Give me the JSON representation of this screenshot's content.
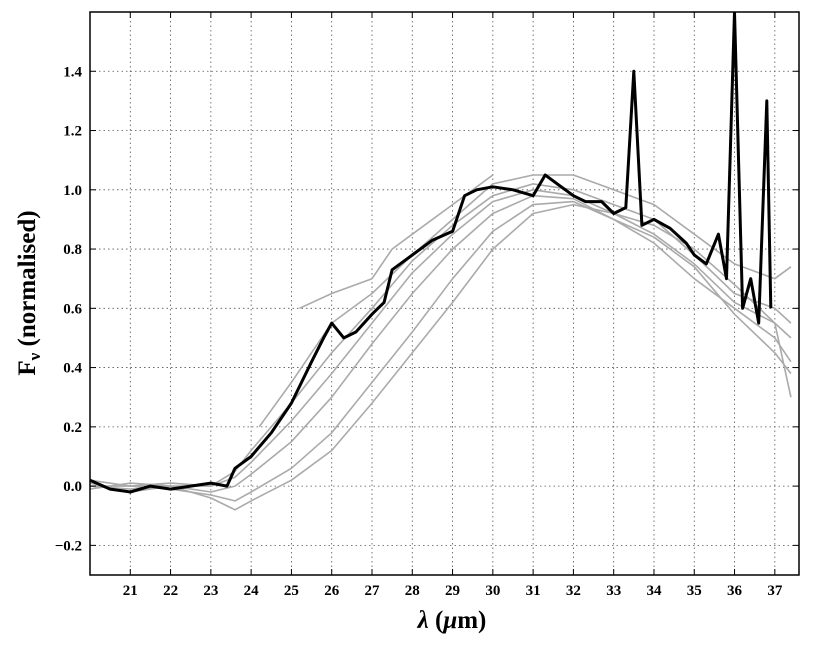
{
  "chart_data": {
    "type": "line",
    "title": "",
    "xlabel": {
      "symbol": "λ",
      "rest": " (",
      "unit_mu": "μ",
      "unit_m": "m)"
    },
    "ylabel": {
      "main": "F",
      "sub": "ν",
      "rest": " (normalised)"
    },
    "xlim": [
      20.0,
      37.6
    ],
    "ylim": [
      -0.3,
      1.6
    ],
    "grid": true,
    "x_ticks": [
      21,
      22,
      23,
      24,
      25,
      26,
      27,
      28,
      29,
      30,
      31,
      32,
      33,
      34,
      35,
      36,
      37
    ],
    "x_tick_labels": [
      "21",
      "22",
      "23",
      "24",
      "25",
      "26",
      "27",
      "28",
      "29",
      "30",
      "31",
      "32",
      "33",
      "34",
      "35",
      "36",
      "37"
    ],
    "y_ticks": [
      -0.2,
      0.0,
      0.2,
      0.4,
      0.6,
      0.8,
      1.0,
      1.2,
      1.4
    ],
    "y_tick_labels": [
      "−0.2",
      "0.0",
      "0.2",
      "0.4",
      "0.6",
      "0.8",
      "1.0",
      "1.2",
      "1.4"
    ],
    "colors": {
      "individual": "#aaaaaa",
      "mean": "#000000",
      "grid": "#555555"
    },
    "series": [
      {
        "style": "individual",
        "x": [
          20.0,
          21.0,
          22.0,
          23.0,
          23.6,
          24.0,
          25.0,
          26.0,
          27.0,
          28.0,
          29.0,
          30.0,
          31.0,
          32.0,
          33.0,
          34.0,
          35.0,
          36.0,
          37.0,
          37.4
        ],
        "y": [
          0.0,
          -0.01,
          0.0,
          0.0,
          0.05,
          0.12,
          0.28,
          0.45,
          0.6,
          0.76,
          0.88,
          0.98,
          1.02,
          1.0,
          0.95,
          0.9,
          0.78,
          0.65,
          0.6,
          0.55
        ]
      },
      {
        "style": "individual",
        "x": [
          20.0,
          21.0,
          22.0,
          23.0,
          23.6,
          24.0,
          25.0,
          26.0,
          27.0,
          28.0,
          29.0,
          30.0,
          31.0,
          32.0,
          33.0,
          34.0,
          35.0,
          36.0,
          37.0,
          37.4
        ],
        "y": [
          0.02,
          0.0,
          0.01,
          0.0,
          0.03,
          0.08,
          0.22,
          0.38,
          0.55,
          0.72,
          0.85,
          0.96,
          1.0,
          0.98,
          0.92,
          0.85,
          0.75,
          0.62,
          0.55,
          0.5
        ]
      },
      {
        "style": "individual",
        "x": [
          20.0,
          21.0,
          22.0,
          23.0,
          23.6,
          24.0,
          25.0,
          26.0,
          27.0,
          28.0,
          29.0,
          30.0,
          31.0,
          32.0,
          33.0,
          34.0,
          35.0,
          36.0,
          37.0,
          37.4
        ],
        "y": [
          -0.01,
          0.01,
          0.0,
          -0.02,
          0.0,
          0.04,
          0.15,
          0.3,
          0.48,
          0.65,
          0.8,
          0.92,
          0.98,
          0.97,
          0.9,
          0.82,
          0.7,
          0.6,
          0.5,
          0.42
        ]
      },
      {
        "style": "individual",
        "x": [
          20.0,
          21.0,
          22.0,
          23.0,
          23.6,
          24.0,
          25.0,
          26.0,
          27.0,
          28.0,
          29.0,
          30.0,
          31.0,
          32.0,
          33.0,
          34.0,
          35.0,
          36.0,
          37.0,
          37.4
        ],
        "y": [
          0.0,
          0.0,
          -0.01,
          -0.03,
          -0.05,
          -0.02,
          0.06,
          0.18,
          0.35,
          0.52,
          0.7,
          0.86,
          0.95,
          0.96,
          0.9,
          0.84,
          0.74,
          0.58,
          0.45,
          0.38
        ]
      },
      {
        "style": "individual",
        "x": [
          20.0,
          21.0,
          22.0,
          23.0,
          23.6,
          24.0,
          25.0,
          26.0,
          27.0,
          28.0,
          29.0,
          30.0,
          31.0,
          32.0,
          33.0,
          34.0,
          35.0,
          36.0,
          37.0,
          37.4
        ],
        "y": [
          0.01,
          -0.02,
          0.0,
          -0.04,
          -0.08,
          -0.05,
          0.02,
          0.12,
          0.28,
          0.45,
          0.62,
          0.8,
          0.92,
          0.95,
          0.92,
          0.88,
          0.8,
          0.68,
          0.55,
          0.3
        ]
      },
      {
        "style": "individual",
        "x": [
          24.2,
          25.0,
          26.0,
          27.0,
          28.0,
          29.0,
          30.0,
          31.0,
          32.0,
          33.0,
          34.0,
          35.0,
          36.0,
          37.0,
          37.4
        ],
        "y": [
          0.2,
          0.35,
          0.55,
          0.65,
          0.78,
          0.9,
          1.02,
          1.05,
          1.05,
          1.0,
          0.95,
          0.85,
          0.75,
          0.7,
          0.74
        ]
      },
      {
        "style": "individual",
        "x": [
          25.2,
          26.0,
          27.0,
          27.5,
          28.0,
          29.0,
          30.0
        ],
        "y": [
          0.6,
          0.65,
          0.7,
          0.8,
          0.85,
          0.95,
          1.05
        ]
      },
      {
        "style": "mean",
        "x": [
          20.0,
          20.5,
          21.0,
          21.5,
          22.0,
          22.5,
          23.0,
          23.4,
          23.6,
          24.0,
          24.5,
          25.0,
          25.5,
          25.8,
          26.0,
          26.3,
          26.6,
          27.0,
          27.3,
          27.5,
          28.0,
          28.5,
          29.0,
          29.3,
          29.6,
          30.0,
          30.5,
          31.0,
          31.3,
          31.6,
          32.0,
          32.3,
          32.7,
          33.0,
          33.3,
          33.5,
          33.7,
          34.0,
          34.4,
          34.8,
          35.0,
          35.3,
          35.6,
          35.8,
          36.0,
          36.2,
          36.4,
          36.6,
          36.8,
          36.9
        ],
        "y": [
          0.02,
          -0.01,
          -0.02,
          0.0,
          -0.01,
          0.0,
          0.01,
          0.0,
          0.06,
          0.1,
          0.18,
          0.28,
          0.42,
          0.5,
          0.55,
          0.5,
          0.52,
          0.58,
          0.62,
          0.73,
          0.78,
          0.83,
          0.86,
          0.98,
          1.0,
          1.01,
          1.0,
          0.98,
          1.05,
          1.02,
          0.98,
          0.96,
          0.96,
          0.92,
          0.94,
          1.4,
          0.88,
          0.9,
          0.87,
          0.82,
          0.78,
          0.75,
          0.85,
          0.7,
          1.6,
          0.6,
          0.7,
          0.55,
          1.3,
          0.6
        ]
      }
    ]
  }
}
